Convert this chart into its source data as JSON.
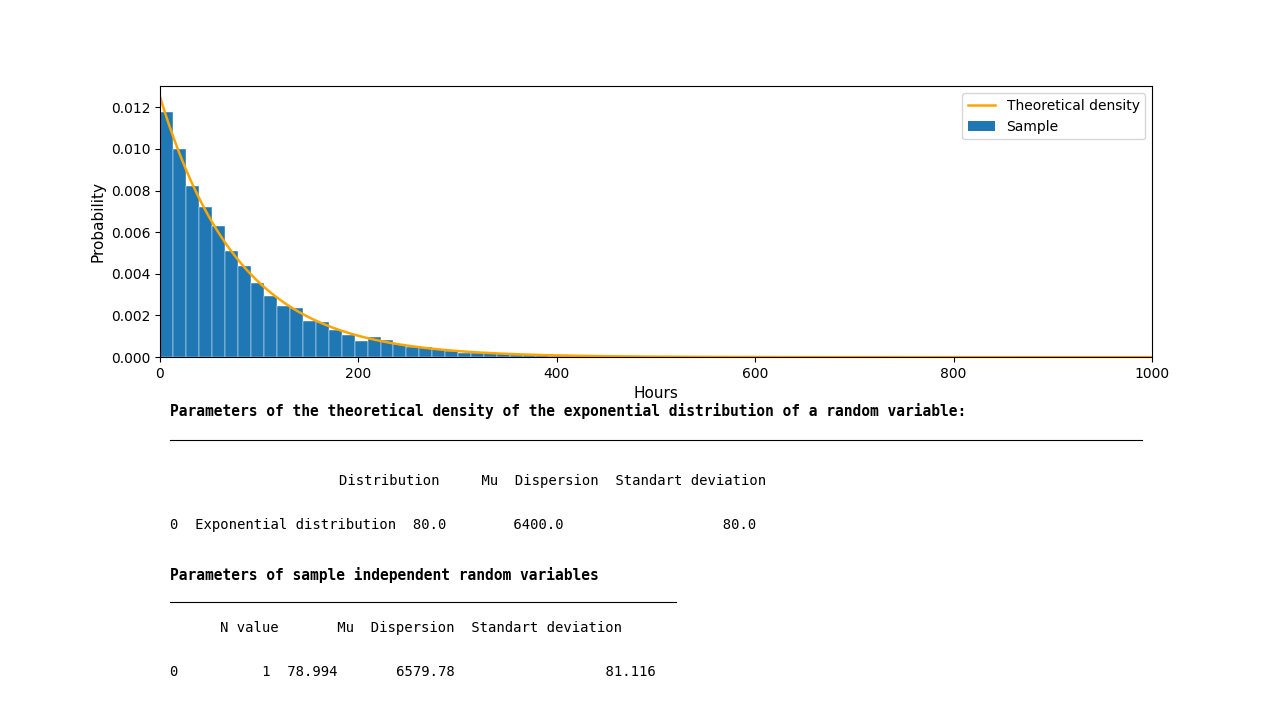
{
  "mu": 80.0,
  "dispersion": 6400.0,
  "std_dev": 80.0,
  "n_value": 1,
  "sample_mu": 78.994,
  "sample_dispersion": 6579.78,
  "sample_std_dev": 81.116,
  "xlim": [
    0,
    1000
  ],
  "ylim": [
    0,
    0.013
  ],
  "xlabel": "Hours",
  "ylabel": "Probability",
  "legend_entries": [
    "Theoretical density",
    "Sample"
  ],
  "line_color": "#FFA500",
  "bar_color": "#1f77b4",
  "title1": "Parameters of the theoretical density of the exponential distribution of a random variable:",
  "title2": "Parameters of sample independent random variables",
  "seed": 42,
  "n_bins": 50,
  "fig_width": 12.8,
  "fig_height": 7.2
}
